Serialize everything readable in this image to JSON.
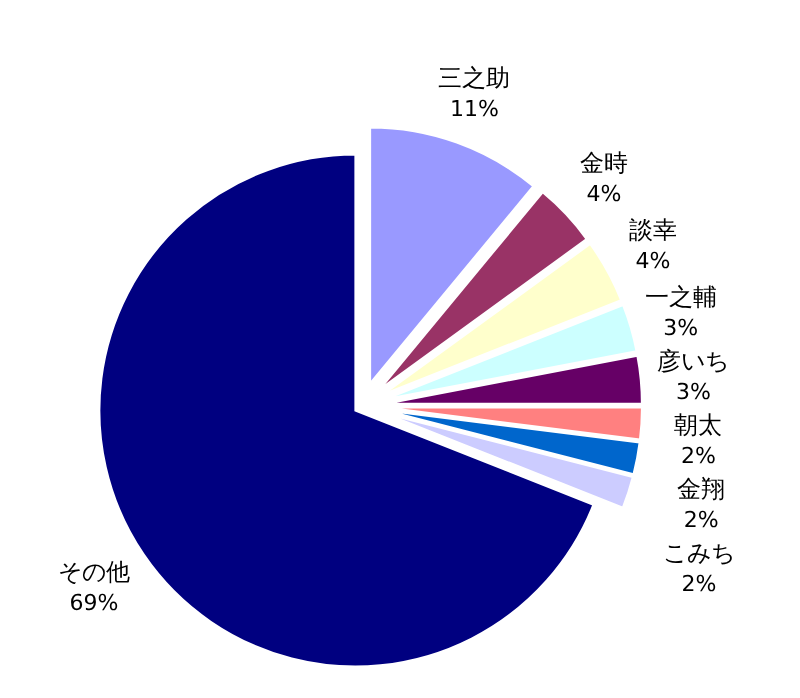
{
  "chart_data": {
    "type": "pie",
    "categories": [
      "三之助",
      "金時",
      "談幸",
      "一之輔",
      "彦いち",
      "朝太",
      "金翔",
      "こみち",
      "その他"
    ],
    "values": [
      11,
      4,
      4,
      3,
      3,
      2,
      2,
      2,
      69
    ],
    "value_labels": [
      "11%",
      "4%",
      "4%",
      "3%",
      "3%",
      "2%",
      "2%",
      "2%",
      "69%"
    ],
    "colors": [
      "#9999ff",
      "#993366",
      "#ffffcc",
      "#ccffff",
      "#660066",
      "#ff8080",
      "#0066cc",
      "#ccccff",
      "#000080"
    ],
    "legend": false
  }
}
